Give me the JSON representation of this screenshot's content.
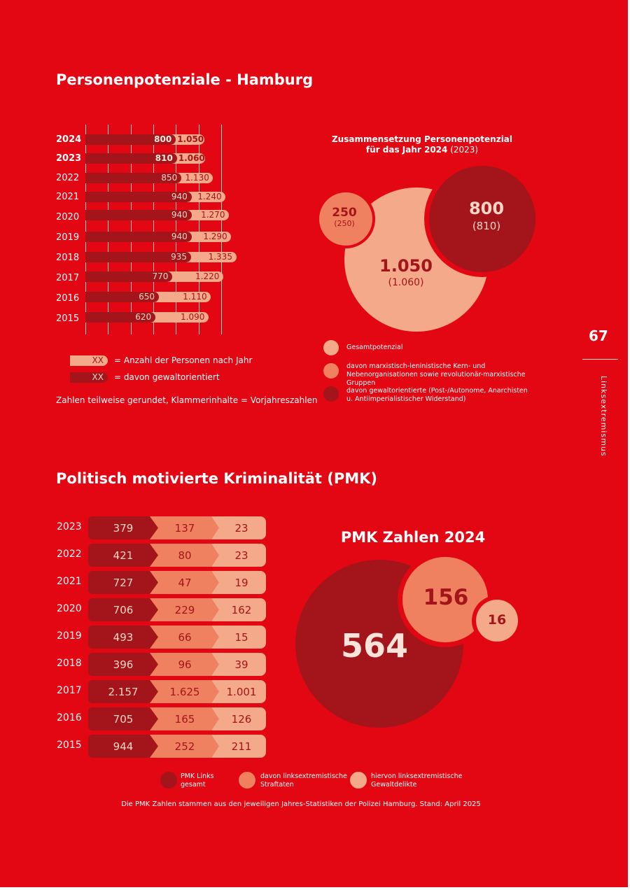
{
  "colors": {
    "page_red": "#e30613",
    "dark": "#a3151a",
    "medium": "#f08160",
    "light": "#f4a98a"
  },
  "section1": {
    "title": "Personenpotenziale - Hamburg"
  },
  "bar_chart_legend": {
    "chip_text": "XX",
    "total_label": "= Anzahl der Personen nach Jahr",
    "violent_label": "= davon gewaltorientiert",
    "note": "Zahlen teilweise gerundet, Klammerinhalte = Vorjahreszahlen"
  },
  "bubble_section": {
    "title_line1": "Zusammensetzung Personenpotenzial",
    "title_line2_bold": "für das Jahr 2024",
    "title_line2_rest": " (2023)",
    "legend": [
      {
        "label": "Gesamtpotenzial"
      },
      {
        "label": "davon marxistisch-leninistische Kern- und Nebenorganisationen sowie revolutionär-marxistische Gruppen"
      },
      {
        "label": "davon gewaltorientierte (Post-/Autonome, Anarchisten u. Antiimperialistischer Widerstand)"
      }
    ]
  },
  "sidebar": {
    "page_number": "67",
    "section_label": "Linksextremismus"
  },
  "section2": {
    "title": "Politisch motivierte Kriminalität (PMK)"
  },
  "pmk_section": {
    "bubble_title": "PMK Zahlen 2024",
    "legend": [
      {
        "label_l1": "PMK Links",
        "label_l2": "gesamt"
      },
      {
        "label_l1": "davon linksextremistische",
        "label_l2": "Straftaten"
      },
      {
        "label_l1": "hiervon linksextremistische",
        "label_l2": "Gewaltdelikte"
      }
    ],
    "footnote": "Die PMK Zahlen stammen aus den jeweiligen Jahres-Statistiken der Polizei Hamburg. Stand: April 2025"
  },
  "chart_data": [
    {
      "type": "bar",
      "title": "Personenpotenziale - Hamburg",
      "categories": [
        "2024",
        "2023",
        "2022",
        "2021",
        "2020",
        "2019",
        "2018",
        "2017",
        "2016",
        "2015"
      ],
      "series": [
        {
          "name": "Anzahl der Personen nach Jahr",
          "values": [
            1050,
            1060,
            1130,
            1240,
            1270,
            1290,
            1335,
            1220,
            1110,
            1090
          ],
          "labels": [
            "1.050",
            "1.060",
            "1.130",
            "1.240",
            "1.270",
            "1.290",
            "1.335",
            "1.220",
            "1.110",
            "1.090"
          ]
        },
        {
          "name": "davon gewaltorientiert",
          "values": [
            800,
            810,
            850,
            940,
            940,
            940,
            935,
            770,
            650,
            620
          ],
          "labels": [
            "800",
            "810",
            "850",
            "940",
            "940",
            "940",
            "935",
            "770",
            "650",
            "620"
          ]
        }
      ],
      "bold_categories": [
        "2024",
        "2023"
      ]
    },
    {
      "type": "bubble",
      "title": "Zusammensetzung Personenpotenzial für das Jahr 2024 (2023)",
      "bubbles": [
        {
          "name": "Gesamtpotenzial",
          "value": 1050,
          "label": "1.050",
          "prev_label": "(1.060)"
        },
        {
          "name": "marxistisch-leninistisch / revolutionär-marxistisch",
          "value": 250,
          "label": "250",
          "prev_label": "(250)"
        },
        {
          "name": "gewaltorientiert",
          "value": 800,
          "label": "800",
          "prev_label": "(810)"
        }
      ]
    },
    {
      "type": "table",
      "title": "Politisch motivierte Kriminalität (PMK)",
      "columns": [
        "PMK Links gesamt",
        "davon linksextremistische Straftaten",
        "hiervon linksextremistische Gewaltdelikte"
      ],
      "rows": [
        {
          "year": "2023",
          "values": [
            "379",
            "137",
            "23"
          ]
        },
        {
          "year": "2022",
          "values": [
            "421",
            "80",
            "23"
          ]
        },
        {
          "year": "2021",
          "values": [
            "727",
            "47",
            "19"
          ]
        },
        {
          "year": "2020",
          "values": [
            "706",
            "229",
            "162"
          ]
        },
        {
          "year": "2019",
          "values": [
            "493",
            "66",
            "15"
          ]
        },
        {
          "year": "2018",
          "values": [
            "396",
            "96",
            "39"
          ]
        },
        {
          "year": "2017",
          "values": [
            "2.157",
            "1.625",
            "1.001"
          ]
        },
        {
          "year": "2016",
          "values": [
            "705",
            "165",
            "126"
          ]
        },
        {
          "year": "2015",
          "values": [
            "944",
            "252",
            "211"
          ]
        }
      ]
    },
    {
      "type": "bubble",
      "title": "PMK Zahlen 2024",
      "bubbles": [
        {
          "name": "PMK Links gesamt",
          "value": 564,
          "label": "564"
        },
        {
          "name": "davon linksextremistische Straftaten",
          "value": 156,
          "label": "156"
        },
        {
          "name": "hiervon linksextremistische Gewaltdelikte",
          "value": 16,
          "label": "16"
        }
      ]
    }
  ]
}
